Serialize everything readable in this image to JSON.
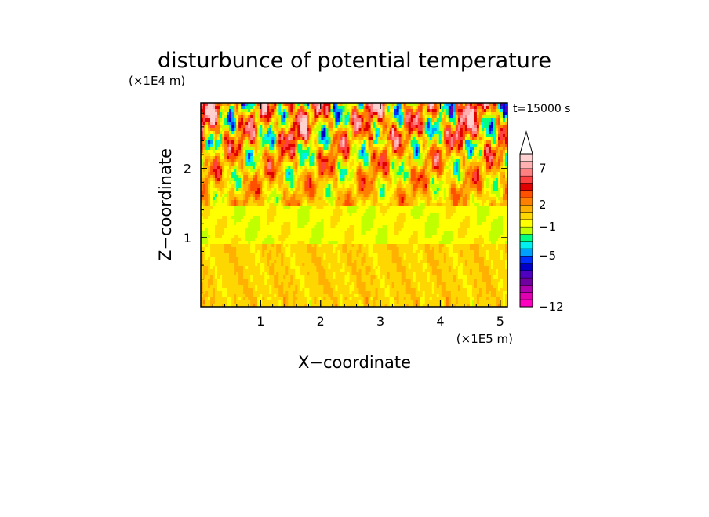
{
  "chart_data": {
    "type": "heatmap",
    "title": "disturbunce of potential temperature",
    "time_label": "t=15000 s",
    "xlabel": "X−coordinate",
    "ylabel": "Z−coordinate",
    "x_unit": "(×1E5 m)",
    "y_unit": "(×1E4 m)",
    "xlim": [
      0,
      5.12
    ],
    "ylim": [
      0,
      2.95
    ],
    "x_ticks": [
      1,
      2,
      3,
      4,
      5
    ],
    "x_tick_labels": [
      "1",
      "2",
      "3",
      "4",
      "5"
    ],
    "y_ticks": [
      1,
      2
    ],
    "y_tick_labels": [
      "1",
      "2"
    ],
    "colorbar": {
      "levels": [
        -12,
        -11,
        -10,
        -9,
        -8,
        -7,
        -6,
        -5,
        -4,
        -3,
        -2,
        -1,
        0,
        1,
        2,
        3,
        4,
        5,
        6,
        7,
        8,
        9
      ],
      "colors": [
        "#ff00c0",
        "#e000b0",
        "#b000b0",
        "#7000a0",
        "#5000c0",
        "#0000c8",
        "#0030ff",
        "#00a0ff",
        "#00f0f0",
        "#00ff80",
        "#c0ff00",
        "#ffff00",
        "#ffd700",
        "#ffb000",
        "#ff8000",
        "#ff5000",
        "#e00000",
        "#ff4040",
        "#ff8080",
        "#ffb0b0",
        "#ffd0d0"
      ],
      "tick_values": [
        -12,
        -5,
        -1,
        2,
        7
      ],
      "tick_labels": [
        "−12",
        "−5",
        "−1",
        "2",
        "7"
      ],
      "extend": "max"
    }
  }
}
